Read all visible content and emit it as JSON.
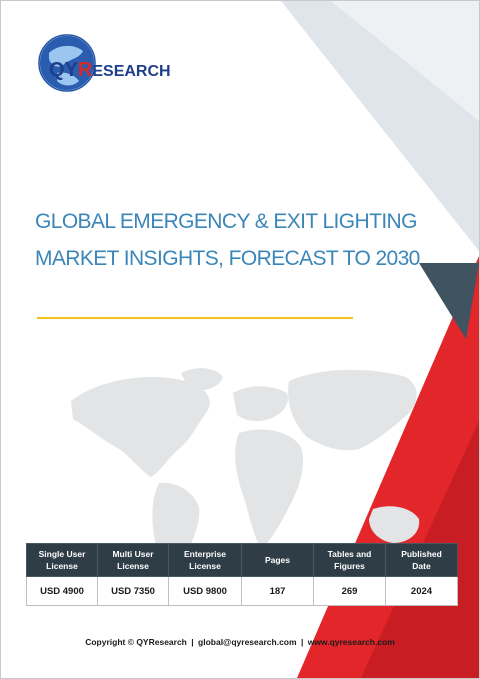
{
  "brand": {
    "logo_q": "Q",
    "logo_y": "Y",
    "logo_r": "R",
    "logo_rest": "ESEARCH",
    "colors": {
      "navy": "#1f3e8c",
      "red": "#d22a2a",
      "title_blue": "#3b86b9",
      "gold": "#f0c21a",
      "dark_slate": "#2f3d47"
    }
  },
  "report": {
    "title_line1": "GLOBAL EMERGENCY & EXIT LIGHTING",
    "title_line2": "MARKET INSIGHTS, FORECAST TO 2030"
  },
  "table": {
    "headers": [
      [
        "Single User",
        "License"
      ],
      [
        "Multi User",
        "License"
      ],
      [
        "Enterprise",
        "License"
      ],
      [
        "Pages",
        ""
      ],
      [
        "Tables and",
        "Figures"
      ],
      [
        "Published",
        "Date"
      ]
    ],
    "values": [
      "USD 4900",
      "USD 7350",
      "USD 9800",
      "187",
      "269",
      "2024"
    ]
  },
  "footer": {
    "copyright": "Copyright © QYResearch",
    "email": "global@qyresearch.com",
    "website": "www.qyresearch.com",
    "separator": "|"
  },
  "icons": [
    "globe-logo-icon",
    "world-map-graphic"
  ]
}
